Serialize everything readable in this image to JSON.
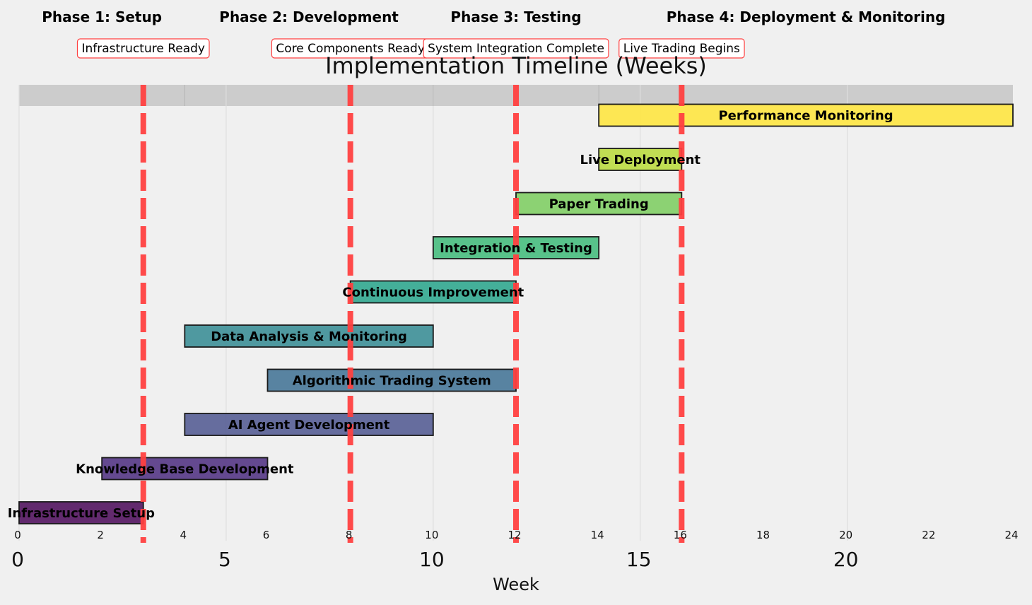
{
  "chart_data": {
    "type": "gantt",
    "title": "Implementation Timeline (Weeks)",
    "xlabel": "Week",
    "xlim": [
      0,
      24
    ],
    "minor_ticks": [
      "0",
      "2",
      "4",
      "6",
      "8",
      "10",
      "12",
      "14",
      "16",
      "18",
      "20",
      "22",
      "24"
    ],
    "major_ticks": [
      "0",
      "5",
      "10",
      "15",
      "20"
    ],
    "grid": true,
    "tasks": [
      {
        "name": "Infrastructure Setup",
        "start": 0,
        "end": 3,
        "color": "#5a1f66"
      },
      {
        "name": "Knowledge Base Development",
        "start": 2,
        "end": 6,
        "color": "#5c3f8a"
      },
      {
        "name": "AI Agent Development",
        "start": 4,
        "end": 10,
        "color": "#5e6599"
      },
      {
        "name": "Algorithmic Trading System",
        "start": 6,
        "end": 12,
        "color": "#4f7c9c"
      },
      {
        "name": "Data Analysis & Monitoring",
        "start": 4,
        "end": 10,
        "color": "#46939b"
      },
      {
        "name": "Continuous Improvement",
        "start": 8,
        "end": 12,
        "color": "#3aab94"
      },
      {
        "name": "Integration & Testing",
        "start": 10,
        "end": 14,
        "color": "#4fbf84"
      },
      {
        "name": "Paper Trading",
        "start": 12,
        "end": 16,
        "color": "#86d06c"
      },
      {
        "name": "Live Deployment",
        "start": 14,
        "end": 16,
        "color": "#bedc4a"
      },
      {
        "name": "Performance Monitoring",
        "start": 14,
        "end": 24,
        "color": "#fde64a"
      }
    ],
    "milestones": [
      {
        "label": "Infrastructure Ready",
        "week": 3
      },
      {
        "label": "Core Components Ready",
        "week": 8
      },
      {
        "label": "System Integration Complete",
        "week": 12
      },
      {
        "label": "Live Trading Begins",
        "week": 16
      }
    ],
    "phases": [
      {
        "label": "Phase 1: Setup",
        "center": 2
      },
      {
        "label": "Phase 2: Development",
        "center": 7
      },
      {
        "label": "Phase 3: Testing",
        "center": 12
      },
      {
        "label": "Phase 4: Deployment & Monitoring",
        "center": 19
      },
      {
        "label": "",
        "center": 0
      }
    ],
    "colors": {
      "milestone_line": "#ff4040",
      "background": "#f0f0f0",
      "band": "#cccccc",
      "grid": "#dedede"
    }
  }
}
